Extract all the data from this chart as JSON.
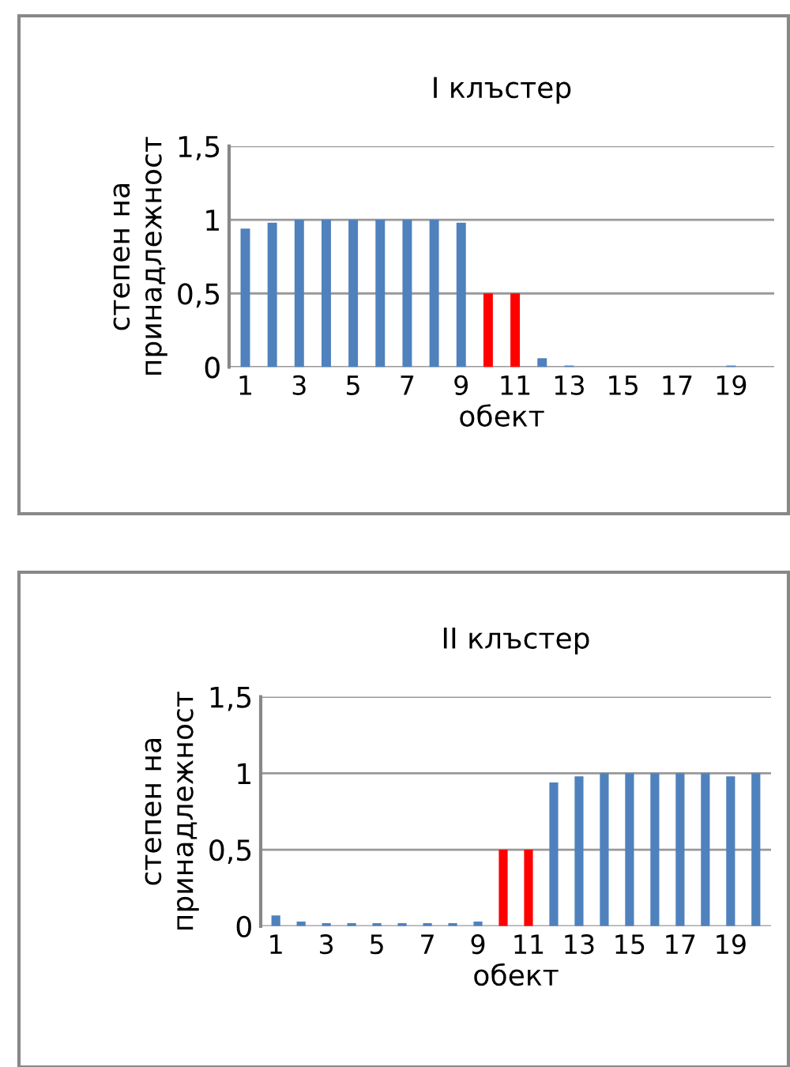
{
  "chart_data": [
    {
      "type": "bar",
      "title": "I клъстер",
      "xlabel": "обект",
      "ylabel": "степен на\nпринадлежност",
      "categories": [
        "1",
        null,
        "3",
        null,
        "5",
        null,
        "7",
        null,
        "9",
        null,
        "11",
        null,
        "13",
        null,
        "15",
        null,
        "17",
        null,
        "19",
        null
      ],
      "values": [
        0.94,
        0.98,
        1,
        1,
        1,
        1,
        1,
        1,
        0.98,
        0.5,
        0.5,
        0.06,
        0.01,
        0,
        0,
        0,
        0,
        0,
        0.01,
        0
      ],
      "colors": [
        "#4f81bd",
        "#4f81bd",
        "#4f81bd",
        "#4f81bd",
        "#4f81bd",
        "#4f81bd",
        "#4f81bd",
        "#4f81bd",
        "#4f81bd",
        "#ff0000",
        "#ff0000",
        "#4f81bd",
        "#4f81bd",
        "#4f81bd",
        "#4f81bd",
        "#4f81bd",
        "#4f81bd",
        "#4f81bd",
        "#4f81bd",
        "#4f81bd"
      ],
      "ylim": [
        0,
        1.5
      ],
      "yticks": [
        {
          "value": 0,
          "label": "0"
        },
        {
          "value": 0.5,
          "label": "0,5"
        },
        {
          "value": 1,
          "label": "1"
        },
        {
          "value": 1.5,
          "label": "1,5"
        }
      ],
      "grid": "y",
      "legend": false
    },
    {
      "type": "bar",
      "title": "II клъстер",
      "xlabel": "обект",
      "ylabel": "степен на\nпринадлежност",
      "categories": [
        "1",
        null,
        "3",
        null,
        "5",
        null,
        "7",
        null,
        "9",
        null,
        "11",
        null,
        "13",
        null,
        "15",
        null,
        "17",
        null,
        "19",
        null
      ],
      "values": [
        0.07,
        0.03,
        0.02,
        0.02,
        0.02,
        0.02,
        0.02,
        0.02,
        0.03,
        0.5,
        0.5,
        0.94,
        0.98,
        1,
        1,
        1,
        1,
        1,
        0.98,
        1
      ],
      "colors": [
        "#4f81bd",
        "#4f81bd",
        "#4f81bd",
        "#4f81bd",
        "#4f81bd",
        "#4f81bd",
        "#4f81bd",
        "#4f81bd",
        "#4f81bd",
        "#ff0000",
        "#ff0000",
        "#4f81bd",
        "#4f81bd",
        "#4f81bd",
        "#4f81bd",
        "#4f81bd",
        "#4f81bd",
        "#4f81bd",
        "#4f81bd",
        "#4f81bd"
      ],
      "ylim": [
        0,
        1.5
      ],
      "yticks": [
        {
          "value": 0,
          "label": "0"
        },
        {
          "value": 0.5,
          "label": "0,5"
        },
        {
          "value": 1,
          "label": "1"
        },
        {
          "value": 1.5,
          "label": "1,5"
        }
      ],
      "grid": "y",
      "legend": false
    }
  ]
}
